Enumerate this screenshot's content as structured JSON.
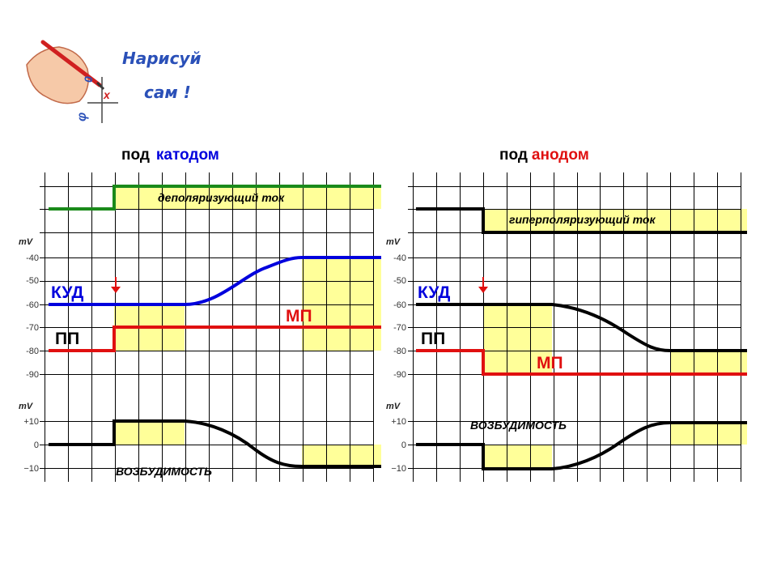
{
  "logo": {
    "line1": "Нарисуй",
    "line2": "сам !",
    "icon": "hand-drawing-graph-icon"
  },
  "headers": {
    "left": {
      "prefix": "под",
      "word": "катодом"
    },
    "right": {
      "prefix": "под",
      "word": "анодом"
    }
  },
  "colors": {
    "blue": "#0000dd",
    "red": "#e01010",
    "green": "#1a8a1a",
    "black": "#000000",
    "fill": "#ffff99"
  },
  "labels": {
    "kud": "КУД",
    "pp": "ПП",
    "mp": "МП",
    "unit": "mV",
    "dep_current": "деполяризующий ток",
    "hyp_current": "гиперполяризующий  ток",
    "excitability": "ВОЗБУДИМОСТЬ"
  },
  "axes": {
    "membrane_ticks": [
      "-40",
      "-50",
      "-60",
      "-70",
      "-80",
      "-90"
    ],
    "excitability_ticks": [
      "+10",
      "0",
      "−10"
    ]
  },
  "chart_data": [
    {
      "type": "line",
      "title": "под катодом",
      "panel": "membrane",
      "xlabel": "",
      "ylabel": "mV",
      "ylim": [
        -90,
        -40
      ],
      "series": [
        {
          "name": "КУД",
          "x": [
            0,
            3,
            6,
            9,
            11,
            14
          ],
          "y": [
            -60,
            -60,
            -60,
            -50,
            -40,
            -40
          ]
        },
        {
          "name": "МП",
          "x": [
            0,
            3,
            3,
            14
          ],
          "y": [
            -80,
            -80,
            -70,
            -70
          ]
        }
      ]
    },
    {
      "type": "line",
      "title": "под катодом",
      "panel": "excitability",
      "xlabel": "",
      "ylabel": "mV",
      "ylim": [
        -10,
        10
      ],
      "series": [
        {
          "name": "ВОЗБУДИМОСТЬ",
          "x": [
            0,
            3,
            3,
            6,
            8,
            11,
            14
          ],
          "y": [
            0,
            0,
            10,
            10,
            0,
            -9,
            -9
          ]
        }
      ]
    },
    {
      "type": "line",
      "title": "под анодом",
      "panel": "membrane",
      "xlabel": "",
      "ylabel": "mV",
      "ylim": [
        -90,
        -40
      ],
      "series": [
        {
          "name": "КУД",
          "x": [
            0,
            3,
            6,
            9,
            11,
            14
          ],
          "y": [
            -60,
            -60,
            -60,
            -70,
            -80,
            -80
          ]
        },
        {
          "name": "МП",
          "x": [
            0,
            3,
            3,
            14
          ],
          "y": [
            -80,
            -80,
            -90,
            -90
          ]
        }
      ]
    },
    {
      "type": "line",
      "title": "под анодом",
      "panel": "excitability",
      "xlabel": "",
      "ylabel": "mV",
      "ylim": [
        -10,
        10
      ],
      "series": [
        {
          "name": "ВОЗБУДИМОСТЬ",
          "x": [
            0,
            3,
            3,
            6,
            8,
            11,
            14
          ],
          "y": [
            0,
            0,
            -10,
            -10,
            0,
            9,
            9
          ]
        }
      ]
    }
  ]
}
